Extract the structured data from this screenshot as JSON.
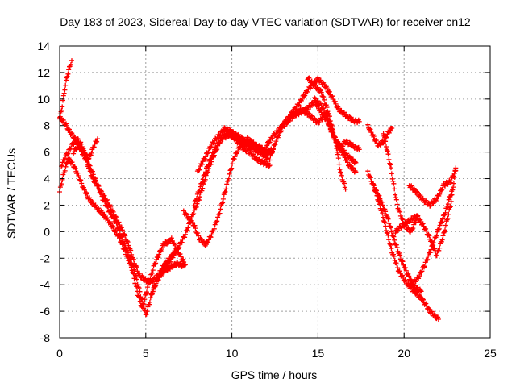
{
  "chart_data": {
    "type": "scatter",
    "title": "Day 183 of 2023, Sidereal Day-to-day VTEC variation (SDTVAR) for receiver cn12",
    "xlabel": "GPS time / hours",
    "ylabel": "SDTVAR / TECUs",
    "xlim": [
      0,
      25
    ],
    "ylim": [
      -8,
      14
    ],
    "xticks": [
      "0",
      "5",
      "10",
      "15",
      "20",
      "25"
    ],
    "yticks": [
      "-8",
      "-6",
      "-4",
      "-2",
      "0",
      "2",
      "4",
      "6",
      "8",
      "10",
      "12",
      "14"
    ],
    "grid": true,
    "marker": "plus",
    "color": "#ff0000",
    "series": [
      {
        "x": [
          0.0,
          0.15,
          0.3,
          0.45,
          0.6,
          0.7
        ],
        "y": [
          8.5,
          9.5,
          10.8,
          11.8,
          12.5,
          12.9
        ]
      },
      {
        "x": [
          0.0,
          0.3,
          0.6,
          0.9,
          1.2,
          1.5,
          1.8,
          2.1,
          2.4,
          2.8,
          3.2,
          3.6,
          4.0,
          4.3,
          4.6,
          4.9,
          5.3,
          5.8,
          6.3,
          6.8,
          7.2
        ],
        "y": [
          8.6,
          8.2,
          7.5,
          7.0,
          6.2,
          5.5,
          4.8,
          3.8,
          3.0,
          2.2,
          1.2,
          0.2,
          -1.0,
          -2.2,
          -3.2,
          -3.6,
          -3.8,
          -3.2,
          -2.8,
          -2.4,
          -2.6
        ]
      },
      {
        "x": [
          0.0,
          0.2,
          0.5,
          0.8,
          1.1,
          1.4,
          1.7,
          2.0,
          2.3,
          2.6,
          3.0,
          3.4,
          3.8,
          4.2,
          4.5,
          4.8,
          5.1,
          5.5,
          6.0,
          6.5,
          7.0,
          7.3
        ],
        "y": [
          3.0,
          4.2,
          5.5,
          5.0,
          4.2,
          3.2,
          2.5,
          2.0,
          1.6,
          1.2,
          0.5,
          -0.3,
          -1.5,
          -2.8,
          -4.5,
          -5.8,
          -4.2,
          -2.5,
          -1.0,
          -0.6,
          -1.8,
          -2.5
        ]
      },
      {
        "x": [
          0.1,
          0.4,
          0.7,
          1.0,
          1.3,
          1.6,
          1.9,
          2.2,
          2.5,
          2.9,
          3.3,
          3.7,
          4.1,
          4.4,
          4.7,
          5.0,
          5.4,
          5.9,
          6.4,
          6.9
        ],
        "y": [
          5.0,
          5.8,
          6.5,
          7.0,
          6.5,
          5.2,
          4.0,
          3.5,
          2.5,
          1.5,
          0.6,
          -0.8,
          -2.0,
          -3.2,
          -4.8,
          -6.3,
          -4.5,
          -2.8,
          -2.0,
          -1.2
        ]
      },
      {
        "x": [
          0.8,
          1.1,
          1.4,
          1.7,
          2.0,
          2.2
        ],
        "y": [
          6.0,
          6.5,
          6.0,
          5.5,
          6.5,
          7.0
        ]
      },
      {
        "x": [
          5.3,
          5.7,
          6.1,
          6.5,
          6.9,
          7.3,
          7.7,
          8.1,
          8.5,
          8.9,
          9.3,
          9.7,
          10.1,
          10.5,
          10.9,
          11.3,
          11.7,
          12.1
        ],
        "y": [
          -4.8,
          -3.6,
          -2.8,
          -2.0,
          -1.2,
          -0.2,
          1.2,
          2.5,
          4.2,
          5.6,
          6.8,
          7.5,
          7.2,
          6.8,
          6.5,
          6.2,
          5.9,
          5.5
        ]
      },
      {
        "x": [
          7.2,
          7.5,
          7.8,
          8.1,
          8.5,
          8.9,
          9.3,
          9.7,
          10.1,
          10.5,
          10.9,
          11.3,
          11.7,
          12.1
        ],
        "y": [
          1.5,
          1.0,
          0.5,
          -0.5,
          -1.0,
          0.0,
          1.5,
          3.5,
          5.5,
          6.5,
          7.0,
          6.6,
          6.2,
          5.8
        ]
      },
      {
        "x": [
          8.0,
          8.4,
          8.8,
          9.2,
          9.6,
          10.0,
          10.4,
          10.8,
          11.2,
          11.6,
          12.0,
          12.4
        ],
        "y": [
          4.5,
          5.5,
          6.5,
          7.2,
          7.8,
          7.5,
          7.2,
          6.8,
          6.6,
          6.4,
          6.0,
          6.2
        ]
      },
      {
        "x": [
          7.8,
          8.2,
          8.6,
          9.0,
          9.4,
          9.8,
          10.2,
          10.6,
          11.0,
          11.4,
          11.8,
          12.2
        ],
        "y": [
          2.0,
          3.5,
          5.0,
          6.2,
          7.0,
          7.3,
          7.0,
          6.3,
          6.0,
          5.5,
          5.2,
          5.0
        ]
      },
      {
        "x": [
          12.2,
          12.6,
          13.0,
          13.4,
          13.8,
          14.2,
          14.6,
          15.0,
          15.4,
          15.8,
          16.2,
          16.6,
          17.0,
          17.4
        ],
        "y": [
          5.5,
          7.0,
          8.0,
          8.8,
          9.5,
          10.3,
          11.0,
          11.5,
          11.0,
          10.2,
          9.2,
          8.8,
          8.4,
          8.3
        ]
      },
      {
        "x": [
          12.0,
          12.4,
          12.8,
          13.2,
          13.6,
          14.0,
          14.4,
          14.8,
          15.2,
          15.6,
          16.0,
          16.4,
          16.8,
          17.2
        ],
        "y": [
          6.5,
          7.2,
          7.8,
          8.5,
          8.8,
          9.0,
          9.3,
          9.8,
          9.0,
          8.2,
          7.0,
          6.2,
          5.6,
          5.2
        ]
      },
      {
        "x": [
          13.0,
          13.5,
          14.0,
          14.5,
          15.0,
          15.4,
          15.8,
          16.2,
          16.6,
          17.0,
          17.4
        ],
        "y": [
          8.0,
          8.6,
          9.2,
          8.8,
          8.2,
          8.8,
          7.5,
          6.2,
          6.8,
          6.5,
          6.2
        ]
      },
      {
        "x": [
          14.4,
          14.8,
          15.2,
          15.6,
          16.0,
          16.3,
          16.6
        ],
        "y": [
          11.6,
          11.0,
          10.5,
          9.0,
          7.0,
          4.5,
          3.2
        ]
      },
      {
        "x": [
          14.8,
          15.2,
          15.6,
          16.0,
          16.4,
          16.8,
          17.2
        ],
        "y": [
          10.0,
          9.5,
          8.5,
          7.0,
          6.0,
          5.0,
          4.5
        ]
      },
      {
        "x": [
          17.9,
          18.2,
          18.5,
          18.8,
          19.1,
          19.3
        ],
        "y": [
          8.0,
          7.2,
          6.5,
          6.8,
          7.5,
          7.8
        ]
      },
      {
        "x": [
          17.9,
          18.3,
          18.7,
          19.0,
          19.3,
          19.7,
          20.1,
          20.5,
          21.0,
          21.5,
          22.0
        ],
        "y": [
          4.5,
          3.2,
          1.5,
          0.0,
          -1.5,
          -3.0,
          -3.8,
          -4.4,
          -5.0,
          -6.0,
          -6.6
        ]
      },
      {
        "x": [
          18.2,
          18.6,
          19.0,
          19.4,
          19.8,
          20.2,
          20.6,
          21.0
        ],
        "y": [
          3.5,
          2.5,
          1.2,
          -0.5,
          -2.0,
          -3.2,
          -4.2,
          -4.5
        ]
      },
      {
        "x": [
          18.8,
          19.2,
          19.6,
          20.0,
          20.4,
          20.8
        ],
        "y": [
          7.5,
          5.0,
          2.0,
          0.5,
          0.0,
          1.2
        ]
      },
      {
        "x": [
          19.5,
          19.9,
          20.3,
          20.7,
          21.1,
          21.5,
          21.9,
          22.3,
          22.7,
          23.0
        ],
        "y": [
          0.0,
          0.5,
          0.8,
          1.2,
          0.5,
          -0.5,
          -1.8,
          -0.2,
          2.0,
          4.8
        ]
      },
      {
        "x": [
          20.3,
          20.7,
          21.1,
          21.5,
          21.9,
          22.3,
          22.7,
          23.0
        ],
        "y": [
          3.5,
          3.0,
          2.4,
          2.0,
          2.5,
          3.5,
          3.8,
          4.6
        ]
      },
      {
        "x": [
          20.4,
          20.8,
          21.2,
          21.6,
          22.0,
          22.4,
          22.8
        ],
        "y": [
          -4.0,
          -3.5,
          -2.5,
          -1.2,
          0.2,
          1.5,
          3.2
        ]
      }
    ]
  }
}
